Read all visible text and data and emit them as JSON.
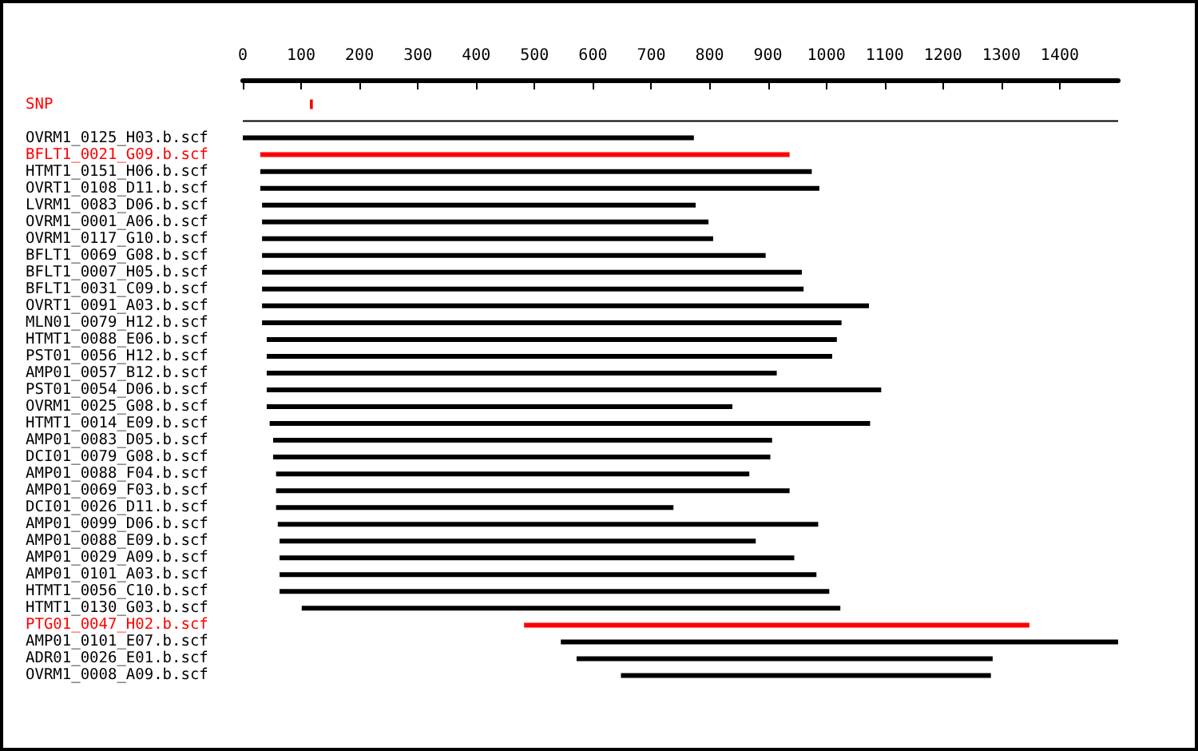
{
  "chart_data": {
    "type": "bar",
    "orientation": "horizontal",
    "grid": false,
    "categories": [
      "SNP",
      null,
      "OVRM1_0125_H03.b.scf",
      "BFLT1_0021_G09.b.scf",
      "HTMT1_0151_H06.b.scf",
      "OVRT1_0108_D11.b.scf",
      "LVRM1_0083_D06.b.scf",
      "OVRM1_0001_A06.b.scf",
      "OVRM1_0117_G10.b.scf",
      "BFLT1_0069_G08.b.scf",
      "BFLT1_0007_H05.b.scf",
      "BFLT1_0031_C09.b.scf",
      "OVRT1_0091_A03.b.scf",
      "MLN01_0079_H12.b.scf",
      "HTMT1_0088_E06.b.scf",
      "PST01_0056_H12.b.scf",
      "AMP01_0057_B12.b.scf",
      "PST01_0054_D06.b.scf",
      "OVRM1_0025_G08.b.scf",
      "HTMT1_0014_E09.b.scf",
      "AMP01_0083_D05.b.scf",
      "DCI01_0079_G08.b.scf",
      "AMP01_0088_F04.b.scf",
      "AMP01_0069_F03.b.scf",
      "DCI01_0026_D11.b.scf",
      "AMP01_0099_D06.b.scf",
      "AMP01_0088_E09.b.scf",
      "AMP01_0029_A09.b.scf",
      "AMP01_0101_A03.b.scf",
      "HTMT1_0056_C10.b.scf",
      "HTMT1_0130_G03.b.scf",
      "PTG01_0047_H02.b.scf",
      "AMP01_0101_E07.b.scf",
      "ADR01_0026_E01.b.scf",
      "OVRM1_0008_A09.b.scf"
    ],
    "base": [
      115,
      0,
      0,
      30,
      30,
      30,
      33,
      33,
      33,
      33,
      33,
      33,
      33,
      33,
      41,
      41,
      41,
      41,
      41,
      46,
      52,
      52,
      57,
      57,
      57,
      60,
      63,
      63,
      63,
      63,
      101,
      482,
      545,
      572,
      648
    ],
    "values": [
      5,
      1500,
      773,
      907,
      945,
      958,
      743,
      765,
      773,
      863,
      925,
      928,
      1040,
      993,
      977,
      969,
      874,
      1053,
      798,
      1029,
      855,
      852,
      811,
      880,
      681,
      926,
      816,
      882,
      920,
      942,
      923,
      866,
      955,
      713,
      634
    ],
    "colors": [
      "#ff0000",
      "#000000",
      "#000000",
      "#ff0000",
      "#000000",
      "#000000",
      "#000000",
      "#000000",
      "#000000",
      "#000000",
      "#000000",
      "#000000",
      "#000000",
      "#000000",
      "#000000",
      "#000000",
      "#000000",
      "#000000",
      "#000000",
      "#000000",
      "#000000",
      "#000000",
      "#000000",
      "#000000",
      "#000000",
      "#000000",
      "#000000",
      "#000000",
      "#000000",
      "#000000",
      "#000000",
      "#ff0000",
      "#000000",
      "#000000",
      "#000000"
    ],
    "xlim": [
      0,
      1500
    ],
    "xticks": [
      0,
      100,
      200,
      300,
      400,
      500,
      600,
      700,
      800,
      900,
      1000,
      1100,
      1200,
      1300,
      1400
    ]
  }
}
